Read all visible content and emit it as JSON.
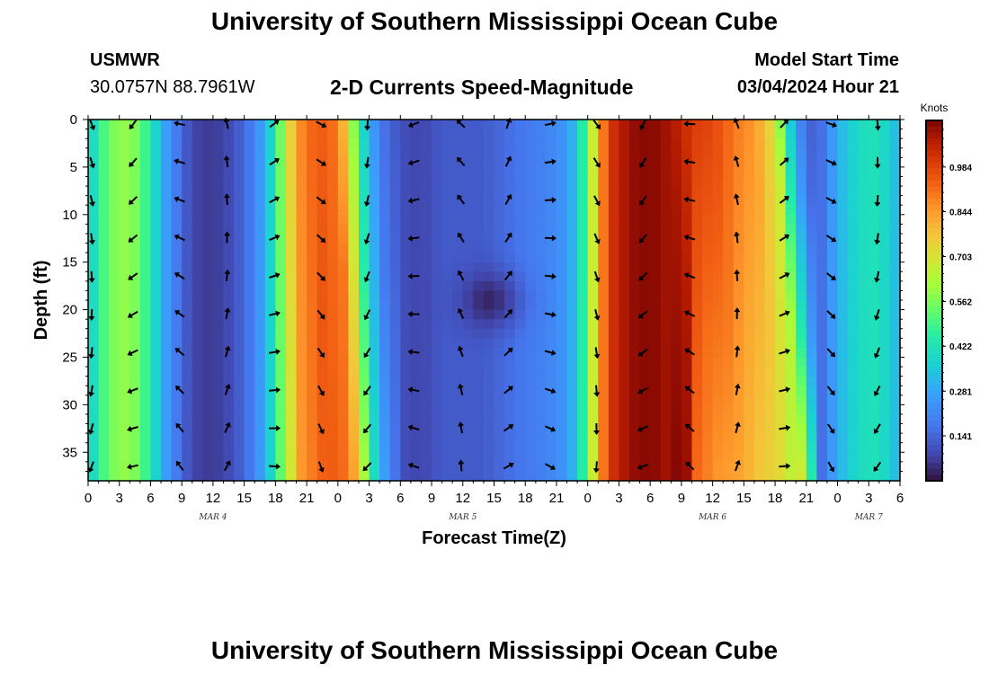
{
  "title": "University of Southern Mississippi Ocean Cube",
  "footer_title": "University of Southern Mississippi Ocean Cube",
  "station": {
    "name": "USMWR",
    "coords": "30.0757N  88.7961W"
  },
  "plot_title": "2-D Currents Speed-Magnitude",
  "model_start": {
    "label": "Model Start Time",
    "value": "03/04/2024 Hour 21"
  },
  "chart_data": {
    "type": "heatmap",
    "title": "2-D Currents Speed-Magnitude",
    "xlabel": "Forecast Time(Z)",
    "ylabel": "Depth (ft)",
    "x_range_hours": [
      0,
      78
    ],
    "ylim": [
      0,
      38
    ],
    "y_inverted": true,
    "x_ticks": [
      "0",
      "3",
      "6",
      "9",
      "12",
      "15",
      "18",
      "21",
      "0",
      "3",
      "6",
      "9",
      "12",
      "15",
      "18",
      "21",
      "0",
      "3",
      "6",
      "9",
      "12",
      "15",
      "18",
      "21",
      "0",
      "3",
      "6"
    ],
    "date_labels": [
      {
        "label": "MAR 4",
        "hour": 12
      },
      {
        "label": "MAR 5",
        "hour": 36
      },
      {
        "label": "MAR 6",
        "hour": 60
      },
      {
        "label": "MAR 7",
        "hour": 75
      }
    ],
    "y_ticks": [
      "0",
      "5",
      "10",
      "15",
      "20",
      "25",
      "30",
      "35"
    ],
    "colorbar": {
      "unit": "Knots",
      "range": [
        0.0,
        1.13
      ],
      "ticks": [
        "0.984",
        "0.844",
        "0.703",
        "0.562",
        "0.422",
        "0.281",
        "0.141"
      ],
      "tick_values": [
        0.984,
        0.844,
        0.703,
        0.562,
        0.422,
        0.281,
        0.141
      ]
    },
    "speed_profile": {
      "hours": [
        0,
        2,
        4,
        6,
        7,
        8,
        9,
        10,
        12,
        14,
        16,
        17,
        18,
        19,
        20,
        22,
        24,
        25,
        26,
        27,
        28,
        30,
        32,
        34,
        36,
        38,
        40,
        42,
        44,
        46,
        47,
        48,
        49,
        50,
        52,
        54,
        56,
        58,
        60,
        62,
        64,
        66,
        67,
        68,
        69,
        70,
        71,
        72,
        74,
        76,
        78
      ],
      "surface_knots": [
        0.35,
        0.55,
        0.6,
        0.45,
        0.3,
        0.22,
        0.15,
        0.08,
        0.06,
        0.1,
        0.2,
        0.3,
        0.45,
        0.65,
        0.85,
        0.95,
        0.9,
        0.7,
        0.45,
        0.3,
        0.18,
        0.1,
        0.08,
        0.12,
        0.12,
        0.12,
        0.15,
        0.18,
        0.2,
        0.25,
        0.35,
        0.55,
        0.8,
        1.0,
        1.1,
        1.12,
        1.08,
        1.0,
        0.98,
        0.9,
        0.85,
        0.7,
        0.45,
        0.25,
        0.15,
        0.12,
        0.2,
        0.3,
        0.4,
        0.42,
        0.3
      ]
    },
    "arrow_grid": {
      "hours": [
        0,
        4,
        8.5,
        13,
        17.5,
        22,
        26.5,
        31,
        35.5,
        40,
        44,
        48.5,
        53,
        57.5,
        62,
        66.5,
        71,
        75.5
      ],
      "depths_ft": [
        0,
        4,
        8,
        12,
        16,
        20,
        24,
        28,
        32,
        36
      ]
    }
  }
}
